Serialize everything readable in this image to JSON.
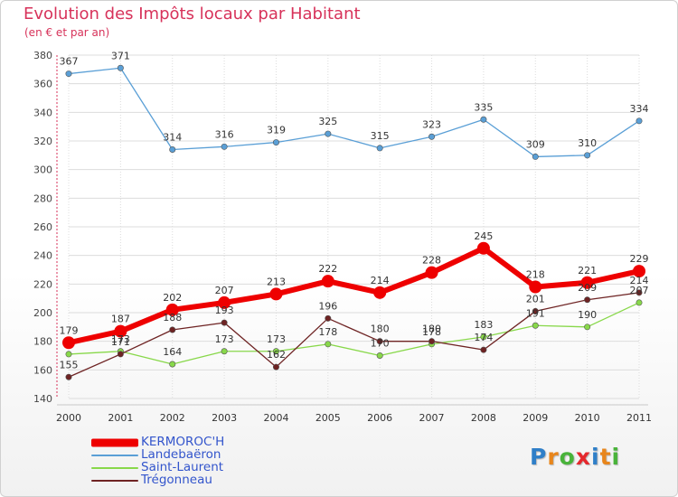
{
  "header": {
    "title": "Evolution des Impôts locaux par Habitant",
    "subtitle": "(en € et par an)"
  },
  "chart_data": {
    "type": "line",
    "title": "Evolution des Impôts locaux par Habitant",
    "subtitle": "(en € et par an)",
    "xlabel": "",
    "ylabel": "",
    "categories": [
      "2000",
      "2001",
      "2002",
      "2003",
      "2004",
      "2005",
      "2006",
      "2007",
      "2008",
      "2009",
      "2010",
      "2011"
    ],
    "yticks": [
      140,
      160,
      180,
      200,
      220,
      240,
      260,
      280,
      300,
      320,
      340,
      360,
      380
    ],
    "ylim": [
      140,
      380
    ],
    "legend_position": "bottom-left",
    "series": [
      {
        "name": "KERMOROC'H",
        "color": "#ee0000",
        "values": [
          179,
          187,
          202,
          207,
          213,
          222,
          214,
          228,
          245,
          218,
          221,
          229
        ],
        "labels": [
          "179",
          "187",
          "202",
          "207",
          "213",
          "222",
          "214",
          "228",
          "245",
          "218",
          "221",
          "229"
        ],
        "thick": true
      },
      {
        "name": "Landebaëron",
        "color": "#5a9fd6",
        "values": [
          367,
          371,
          314,
          316,
          319,
          325,
          315,
          323,
          335,
          309,
          310,
          334
        ],
        "labels": [
          "367",
          "371",
          "314",
          "316",
          "319",
          "325",
          "315",
          "323",
          "335",
          "309",
          "310",
          "334"
        ]
      },
      {
        "name": "Saint-Laurent",
        "color": "#88d84a",
        "values": [
          171,
          173,
          164,
          173,
          173,
          178,
          170,
          178,
          183,
          191,
          190,
          207
        ],
        "labels": [
          "",
          "173",
          "164",
          "173",
          "173",
          "178",
          "170",
          "178",
          "183",
          "191",
          "190",
          "207"
        ]
      },
      {
        "name": "Trégonneau",
        "color": "#6e2323",
        "values": [
          155,
          171,
          188,
          193,
          162,
          196,
          180,
          180,
          174,
          201,
          209,
          214
        ],
        "labels": [
          "155",
          "171",
          "188",
          "193",
          "162",
          "196",
          "180",
          "180",
          "174",
          "201",
          "209",
          "214"
        ]
      }
    ]
  },
  "legend": {
    "items": [
      {
        "label": "KERMOROC'H"
      },
      {
        "label": "Landebaëron"
      },
      {
        "label": "Saint-Laurent"
      },
      {
        "label": "Trégonneau"
      }
    ]
  },
  "logo": {
    "letters": [
      {
        "ch": "P",
        "color": "#2f7fc8"
      },
      {
        "ch": "r",
        "color": "#e8861c"
      },
      {
        "ch": "o",
        "color": "#49b33a"
      },
      {
        "ch": "x",
        "color": "#e5282d"
      },
      {
        "ch": "i",
        "color": "#2f7fc8"
      },
      {
        "ch": "t",
        "color": "#e8861c"
      },
      {
        "ch": "i",
        "color": "#49b33a"
      }
    ]
  }
}
